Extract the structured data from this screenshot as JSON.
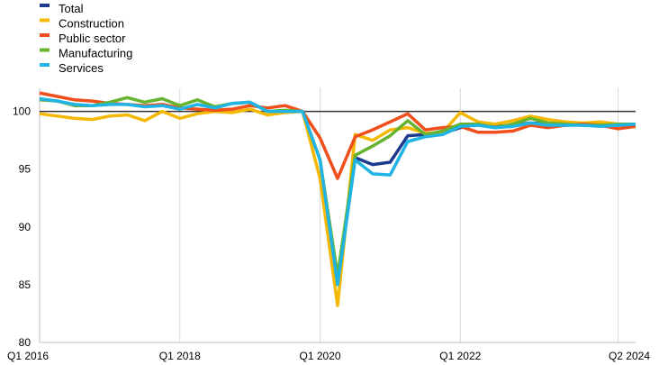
{
  "chart_data": {
    "type": "line",
    "title": "",
    "xlabel": "",
    "ylabel": "",
    "ylim": [
      80,
      102
    ],
    "yticks": [
      80,
      85,
      90,
      95,
      100
    ],
    "xlim": [
      "Q1 2016",
      "Q3 2024"
    ],
    "x_tick_labels": [
      "Q1 2016",
      "Q1 2018",
      "Q1 2020",
      "Q1 2022",
      "Q2 2024"
    ],
    "reference_line": 100,
    "grid": "vertical",
    "legend_position": "top-left",
    "series": [
      {
        "name": "Total",
        "color": "#1d3a8f",
        "x": [
          "Q3 2020",
          "Q4 2020",
          "Q1 2021",
          "Q2 2021",
          "Q3 2021",
          "Q4 2021",
          "Q1 2022",
          "Q2 2022",
          "Q3 2022",
          "Q4 2022",
          "Q1 2023",
          "Q2 2023",
          "Q3 2023",
          "Q4 2023",
          "Q1 2024",
          "Q2 2024",
          "Q3 2024"
        ],
        "values": [
          96.0,
          95.4,
          95.6,
          97.9,
          98.0,
          98.1,
          98.6,
          98.9,
          98.7,
          98.8,
          99.0,
          98.9,
          98.8,
          98.9,
          98.8,
          98.8,
          98.9
        ]
      },
      {
        "name": "Construction",
        "color": "#f5b800",
        "x": [
          "Q1 2016",
          "Q2 2016",
          "Q3 2016",
          "Q4 2016",
          "Q1 2017",
          "Q2 2017",
          "Q3 2017",
          "Q4 2017",
          "Q1 2018",
          "Q2 2018",
          "Q3 2018",
          "Q4 2018",
          "Q1 2019",
          "Q2 2019",
          "Q3 2019",
          "Q4 2019",
          "Q1 2020",
          "Q2 2020",
          "Q3 2020",
          "Q4 2020",
          "Q1 2021",
          "Q2 2021",
          "Q3 2021",
          "Q4 2021",
          "Q1 2022",
          "Q2 2022",
          "Q3 2022",
          "Q4 2022",
          "Q1 2023",
          "Q2 2023",
          "Q3 2023",
          "Q4 2023",
          "Q1 2024",
          "Q2 2024",
          "Q3 2024"
        ],
        "values": [
          99.8,
          99.6,
          99.4,
          99.3,
          99.6,
          99.7,
          99.2,
          100.0,
          99.4,
          99.8,
          100.0,
          99.9,
          100.2,
          99.7,
          99.9,
          100.0,
          94.2,
          83.2,
          98.0,
          97.5,
          98.4,
          98.6,
          98.1,
          98.2,
          99.9,
          99.1,
          98.9,
          99.2,
          99.6,
          99.3,
          99.1,
          99.0,
          99.1,
          98.9,
          98.9
        ]
      },
      {
        "name": "Public sector",
        "color": "#f04e1b",
        "x": [
          "Q1 2016",
          "Q2 2016",
          "Q3 2016",
          "Q4 2016",
          "Q1 2017",
          "Q2 2017",
          "Q3 2017",
          "Q4 2017",
          "Q1 2018",
          "Q2 2018",
          "Q3 2018",
          "Q4 2018",
          "Q1 2019",
          "Q2 2019",
          "Q3 2019",
          "Q4 2019",
          "Q1 2020",
          "Q2 2020",
          "Q3 2020",
          "Q4 2020",
          "Q1 2021",
          "Q2 2021",
          "Q3 2021",
          "Q4 2021",
          "Q1 2022",
          "Q2 2022",
          "Q3 2022",
          "Q4 2022",
          "Q1 2023",
          "Q2 2023",
          "Q3 2023",
          "Q4 2023",
          "Q1 2024",
          "Q2 2024",
          "Q3 2024"
        ],
        "values": [
          101.6,
          101.3,
          101.0,
          100.9,
          100.7,
          100.6,
          100.5,
          100.6,
          100.3,
          100.2,
          100.1,
          100.2,
          100.5,
          100.3,
          100.5,
          100.0,
          97.7,
          94.2,
          97.8,
          98.4,
          99.1,
          99.8,
          98.4,
          98.6,
          98.7,
          98.2,
          98.2,
          98.3,
          98.8,
          98.6,
          98.8,
          98.9,
          98.8,
          98.5,
          98.7
        ]
      },
      {
        "name": "Manufacturing",
        "color": "#65b32e",
        "x": [
          "Q1 2016",
          "Q2 2016",
          "Q3 2016",
          "Q4 2016",
          "Q1 2017",
          "Q2 2017",
          "Q3 2017",
          "Q4 2017",
          "Q1 2018",
          "Q2 2018",
          "Q3 2018",
          "Q4 2018",
          "Q1 2019",
          "Q2 2019",
          "Q3 2019",
          "Q4 2019",
          "Q1 2020",
          "Q2 2020",
          "Q3 2020",
          "Q4 2020",
          "Q1 2021",
          "Q2 2021",
          "Q3 2021",
          "Q4 2021",
          "Q1 2022",
          "Q2 2022",
          "Q3 2022",
          "Q4 2022",
          "Q1 2023",
          "Q2 2023",
          "Q3 2023",
          "Q4 2023",
          "Q1 2024",
          "Q2 2024",
          "Q3 2024"
        ],
        "values": [
          101.0,
          100.9,
          100.5,
          100.5,
          100.8,
          101.2,
          100.8,
          101.1,
          100.5,
          101.0,
          100.4,
          100.7,
          100.8,
          100.0,
          100.1,
          100.0,
          95.8,
          85.8,
          96.2,
          97.0,
          97.9,
          99.2,
          98.0,
          98.3,
          98.9,
          98.9,
          98.6,
          98.9,
          99.4,
          99.0,
          98.9,
          98.8,
          98.8,
          98.9,
          98.9
        ]
      },
      {
        "name": "Services",
        "color": "#1fb4e5",
        "x": [
          "Q1 2016",
          "Q2 2016",
          "Q3 2016",
          "Q4 2016",
          "Q1 2017",
          "Q2 2017",
          "Q3 2017",
          "Q4 2017",
          "Q1 2018",
          "Q2 2018",
          "Q3 2018",
          "Q4 2018",
          "Q1 2019",
          "Q2 2019",
          "Q3 2019",
          "Q4 2019",
          "Q1 2020",
          "Q2 2020",
          "Q3 2020",
          "Q4 2020",
          "Q1 2021",
          "Q2 2021",
          "Q3 2021",
          "Q4 2021",
          "Q1 2022",
          "Q2 2022",
          "Q3 2022",
          "Q4 2022",
          "Q1 2023",
          "Q2 2023",
          "Q3 2023",
          "Q4 2023",
          "Q1 2024",
          "Q2 2024",
          "Q3 2024"
        ],
        "values": [
          101.1,
          100.9,
          100.6,
          100.5,
          100.6,
          100.6,
          100.4,
          100.5,
          100.2,
          100.6,
          100.3,
          100.7,
          100.8,
          100.0,
          100.0,
          100.0,
          95.8,
          85.0,
          95.8,
          94.6,
          94.5,
          97.4,
          97.8,
          98.0,
          98.7,
          98.8,
          98.6,
          98.7,
          99.0,
          98.8,
          98.8,
          98.8,
          98.7,
          98.8,
          98.9
        ]
      }
    ]
  }
}
